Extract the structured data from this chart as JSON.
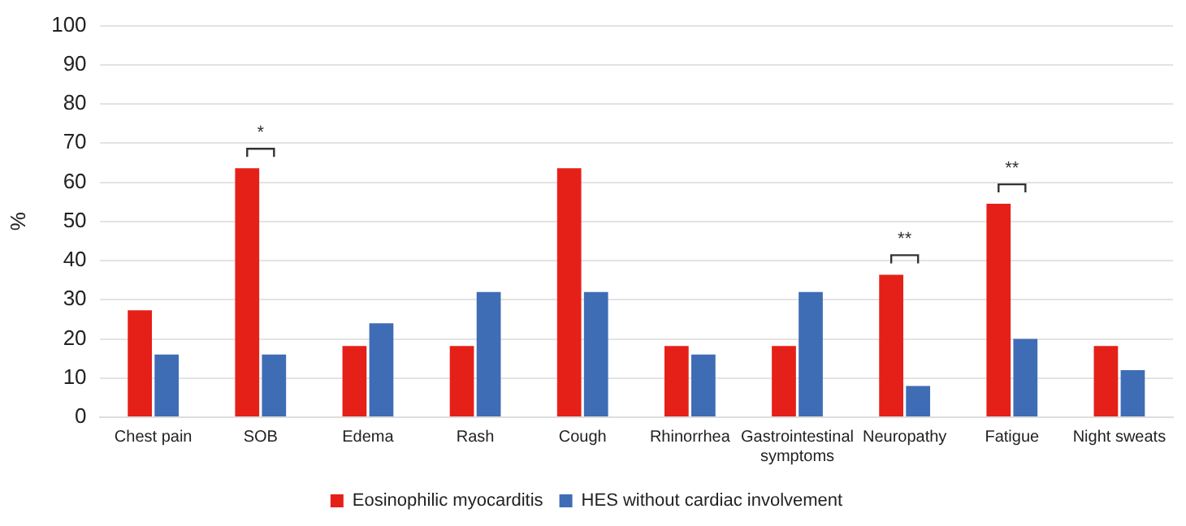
{
  "chart_data": {
    "type": "bar",
    "ylabel": "%",
    "categories": [
      "Chest pain",
      "SOB",
      "Edema",
      "Rash",
      "Cough",
      "Rhinorrhea",
      "Gastrointestinal symptoms",
      "Neuropathy",
      "Fatigue",
      "Night sweats"
    ],
    "series": [
      {
        "name": "Eosinophilic myocarditis",
        "color": "#e52019",
        "values": [
          27.3,
          63.6,
          18.2,
          18.2,
          63.6,
          18.2,
          18.2,
          36.4,
          54.5,
          18.2
        ]
      },
      {
        "name": "HES without cardiac involvement",
        "color": "#3f6db5",
        "values": [
          16,
          16,
          24,
          32,
          32,
          16,
          32,
          8,
          20,
          12
        ]
      }
    ],
    "ylim": [
      0,
      100
    ],
    "yticks": [
      0,
      10,
      20,
      30,
      40,
      50,
      60,
      70,
      80,
      90,
      100
    ],
    "grid": "y",
    "legend": "bottom",
    "annotations": [
      "*",
      "**",
      "**"
    ]
  }
}
